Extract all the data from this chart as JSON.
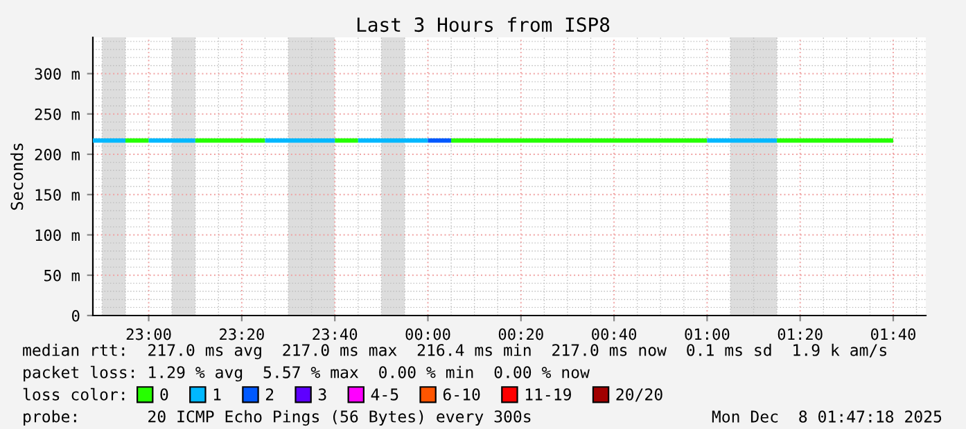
{
  "chart_data": {
    "type": "line",
    "title": "Last 3 Hours from ISP8",
    "ylabel": "Seconds",
    "xlim": [
      "2025-12-07T22:48",
      "2025-12-08T01:47"
    ],
    "xticks": [
      {
        "value": "2025-12-07T23:00",
        "label": "23:00"
      },
      {
        "value": "2025-12-07T23:20",
        "label": "23:20"
      },
      {
        "value": "2025-12-07T23:40",
        "label": "23:40"
      },
      {
        "value": "2025-12-08T00:00",
        "label": "00:00"
      },
      {
        "value": "2025-12-08T00:20",
        "label": "00:20"
      },
      {
        "value": "2025-12-08T00:40",
        "label": "00:40"
      },
      {
        "value": "2025-12-08T01:00",
        "label": "01:00"
      },
      {
        "value": "2025-12-08T01:20",
        "label": "01:20"
      },
      {
        "value": "2025-12-08T01:40",
        "label": "01:40"
      }
    ],
    "ylim": [
      0,
      345
    ],
    "yticks": [
      0,
      {
        "value": 50,
        "label": "50 m"
      },
      {
        "value": 100,
        "label": "100 m"
      },
      {
        "value": 150,
        "label": "150 m"
      },
      {
        "value": 200,
        "label": "200 m"
      },
      {
        "value": 250,
        "label": "250 m"
      },
      {
        "value": 300,
        "label": "300 m"
      }
    ],
    "grid": true,
    "legend": "bottom",
    "legend_title": "loss color:",
    "series": [
      {
        "name": "0",
        "color": "#26ff00",
        "x": [
          "2025-12-07T22:55",
          "2025-12-07T23:00",
          "2025-12-07T23:05",
          "2025-12-07T23:10",
          "2025-12-07T23:25",
          "2025-12-07T23:30",
          "2025-12-07T23:40",
          "2025-12-07T23:45",
          "2025-12-07T23:55",
          "2025-12-08T00:05",
          "2025-12-08T01:00",
          "2025-12-08T01:05",
          "2025-12-08T01:15",
          "2025-12-08T01:40"
        ],
        "values": [
          217,
          217,
          null,
          217,
          217,
          null,
          217,
          217,
          null,
          217,
          217,
          null,
          217,
          217
        ]
      },
      {
        "name": "1",
        "color": "#00b8ff",
        "x": [
          "2025-12-07T22:48",
          "2025-12-07T22:55",
          "2025-12-07T22:57",
          "2025-12-07T23:00",
          "2025-12-07T23:10",
          "2025-12-07T23:15",
          "2025-12-07T23:25",
          "2025-12-07T23:40",
          "2025-12-07T23:42",
          "2025-12-07T23:45",
          "2025-12-08T00:00",
          "2025-12-08T00:30",
          "2025-12-08T01:00",
          "2025-12-08T01:15"
        ],
        "values": [
          217,
          217,
          null,
          217,
          217,
          null,
          217,
          217,
          null,
          217,
          217,
          null,
          217,
          217
        ]
      },
      {
        "name": "2",
        "color": "#0059ff",
        "x": [
          "2025-12-08T00:00",
          "2025-12-08T00:05"
        ],
        "values": [
          217,
          217
        ]
      },
      {
        "name": "3",
        "color": "#5e00ff"
      },
      {
        "name": "4-5",
        "color": "#ff00ff"
      },
      {
        "name": "6-10",
        "color": "#ff5500"
      },
      {
        "name": "11-19",
        "color": "#ff0000"
      },
      {
        "name": "20/20",
        "color": "#a10000"
      }
    ],
    "bands": [
      {
        "axis": "x",
        "from": "2025-12-07T22:50",
        "to": "2025-12-07T22:55",
        "color": "#dddddd"
      },
      {
        "axis": "x",
        "from": "2025-12-07T23:05",
        "to": "2025-12-07T23:10",
        "color": "#dddddd"
      },
      {
        "axis": "x",
        "from": "2025-12-07T23:30",
        "to": "2025-12-07T23:40",
        "color": "#dddddd"
      },
      {
        "axis": "x",
        "from": "2025-12-07T23:50",
        "to": "2025-12-07T23:55",
        "color": "#dddddd"
      },
      {
        "axis": "x",
        "from": "2025-12-08T01:05",
        "to": "2025-12-08T01:15",
        "color": "#dddddd"
      }
    ],
    "annotations": [
      "median rtt:  217.0 ms avg  217.0 ms max  216.4 ms min  217.0 ms now  0.1 ms sd  1.9 k am/s",
      "packet loss: 1.29 % avg  5.57 % max  0.00 % min  0.00 % now",
      "probe:       20 ICMP Echo Pings (56 Bytes) every 300s",
      "Mon Dec  8 01:47:18 2025"
    ]
  }
}
